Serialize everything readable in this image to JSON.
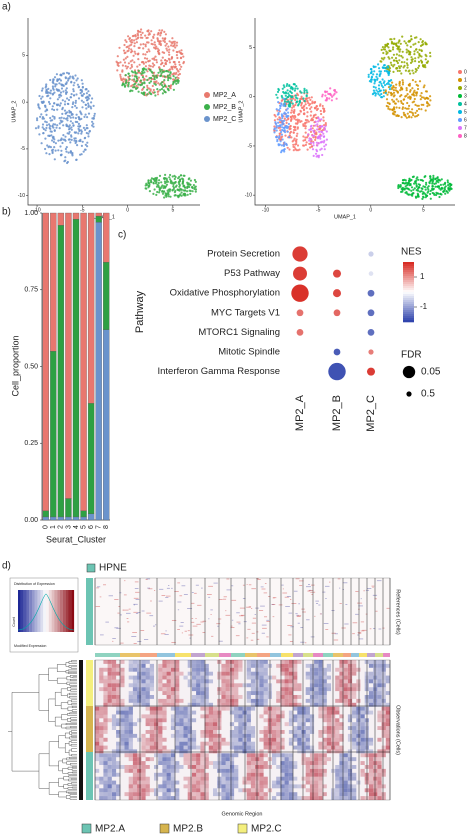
{
  "panels": {
    "a": "a)",
    "b": "b)",
    "c": "c)",
    "d": "d)"
  },
  "chart_data": [
    {
      "type": "scatter",
      "xlabel": "UMAP_1",
      "ylabel": "UMAP_2",
      "xlim": [
        -11,
        8
      ],
      "ylim": [
        -11,
        9
      ],
      "xticks": [
        -10,
        -5,
        0,
        5
      ],
      "yticks": [
        -10,
        -5,
        0,
        5
      ],
      "series": [
        {
          "name": "MP2_A",
          "color": "#e8796d"
        },
        {
          "name": "MP2_B",
          "color": "#3bb04a"
        },
        {
          "name": "MP2_C",
          "color": "#6a93cc"
        }
      ]
    },
    {
      "type": "scatter",
      "xlabel": "UMAP_1",
      "ylabel": "UMAP_2",
      "xlim": [
        -11,
        8
      ],
      "ylim": [
        -11,
        8
      ],
      "xticks": [
        -10,
        -5,
        0,
        5
      ],
      "yticks": [
        -10,
        -5,
        0,
        5
      ],
      "series": [
        {
          "name": "0",
          "color": "#f8766d"
        },
        {
          "name": "1",
          "color": "#d39200"
        },
        {
          "name": "2",
          "color": "#93aa00"
        },
        {
          "name": "3",
          "color": "#00ba38"
        },
        {
          "name": "4",
          "color": "#00c19f"
        },
        {
          "name": "5",
          "color": "#00b9e3"
        },
        {
          "name": "6",
          "color": "#619cff"
        },
        {
          "name": "7",
          "color": "#db72fb"
        },
        {
          "name": "8",
          "color": "#ff61c3"
        }
      ]
    },
    {
      "type": "bar",
      "stacked": true,
      "xlabel": "Seurat_Cluster",
      "ylabel": "Cell_proportion",
      "categories": [
        "0",
        "1",
        "2",
        "3",
        "4",
        "5",
        "6",
        "7",
        "8"
      ],
      "series": [
        {
          "color": "#6a93cc",
          "values": [
            0.01,
            0.01,
            0.01,
            0.01,
            0.01,
            0.01,
            0.02,
            0.97,
            0.62
          ]
        },
        {
          "color": "#2ea043",
          "values": [
            0.02,
            0.54,
            0.95,
            0.06,
            0.97,
            0.02,
            0.36,
            0.02,
            0.22
          ]
        },
        {
          "color": "#e8776f",
          "values": [
            0.97,
            0.45,
            0.04,
            0.93,
            0.02,
            0.97,
            0.62,
            0.01,
            0.16
          ]
        }
      ],
      "ylim": [
        0,
        1
      ],
      "yticks": [
        {
          "value": 0,
          "label": "0.00"
        },
        {
          "value": 0.25,
          "label": "0.25"
        },
        {
          "value": 0.5,
          "label": "0.50"
        },
        {
          "value": 0.75,
          "label": "0.75"
        },
        {
          "value": 1,
          "label": "1.00"
        }
      ]
    },
    {
      "type": "dot",
      "ylabel": "Pathway",
      "categories": [
        "Protein Secretion",
        "P53 Pathway",
        "Oxidative Phosphorylation",
        "MYC Targets V1",
        "MTORC1 Signaling",
        "Mitotic Spindle",
        "Interferon Gamma Response"
      ],
      "groups": [
        "MP2_A",
        "MP2_B",
        "MP2_C"
      ],
      "nes": [
        [
          1.8,
          null,
          -0.5
        ],
        [
          1.8,
          1.7,
          -0.3
        ],
        [
          1.9,
          1.7,
          -1.5
        ],
        [
          1.3,
          1.4,
          -1.5
        ],
        [
          1.3,
          null,
          -1.5
        ],
        [
          null,
          -1.7,
          1.2
        ],
        [
          null,
          -1.8,
          1.8
        ]
      ],
      "fdr": [
        [
          0.02,
          null,
          0.5
        ],
        [
          0.03,
          0.2,
          0.6
        ],
        [
          0.01,
          0.2,
          0.3
        ],
        [
          0.3,
          0.3,
          0.3
        ],
        [
          0.3,
          null,
          0.3
        ],
        [
          null,
          0.3,
          0.5
        ],
        [
          null,
          0.01,
          0.2
        ]
      ],
      "color_label": "NES",
      "colorlim": [
        -2,
        2
      ],
      "colorticks": [
        1,
        -1
      ],
      "size_label": "FDR",
      "size_ticks": [
        0.05,
        0.5
      ]
    }
  ],
  "heatmap": {
    "reference_label": "HPNE",
    "reference_axis": "References (Cells)",
    "observation_axis": "Observations (Cells)",
    "xlabel": "Genomic Region",
    "key": {
      "title": "Distribution of Expression",
      "ylabel": "Count",
      "xlabel": "Modified Expression"
    },
    "legend": [
      {
        "name": "MP2.A",
        "color": "#6cc4b3"
      },
      {
        "name": "MP2.B",
        "color": "#d6b44e"
      },
      {
        "name": "MP2.C",
        "color": "#f4ef7e"
      }
    ]
  }
}
